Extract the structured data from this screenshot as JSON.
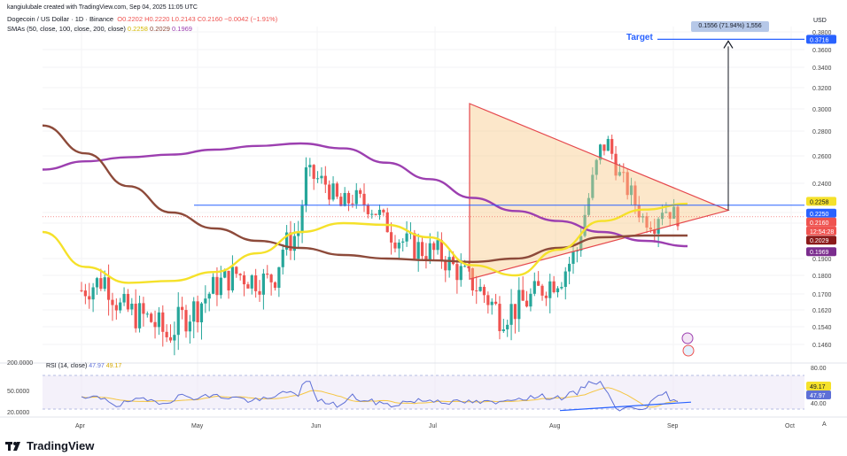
{
  "header": {
    "attribution": "kangiulubale created with TradingView.com, Sep 04, 2025 11:05 UTC",
    "symbol_line": "Dogecoin / US Dollar · 1D · Binance",
    "ohlc": "O0.2202  H0.2220  L0.2143  C0.2160  −0.0042 (−1.91%)",
    "sma_line": "SMAs (50, close, 100, close, 200, close)",
    "sma_values": [
      "0.2258",
      "0.2029",
      "0.1969"
    ]
  },
  "rsi_header": {
    "label": "RSI (14, close)",
    "values": [
      "47.97",
      "49.17"
    ]
  },
  "annotations": {
    "target_label": "Target",
    "measure_label": "0.1556 (71.94%) 1,556"
  },
  "price_axis": {
    "currency": "USD",
    "ticks": [
      "0.3800",
      "0.3600",
      "0.3400",
      "0.3200",
      "0.3000",
      "0.2800",
      "0.2600",
      "0.2400",
      "0.2200",
      "0.2100",
      "0.1900",
      "0.1800",
      "0.1700",
      "0.1620",
      "0.1540",
      "0.1460"
    ],
    "tags": [
      {
        "value": "0.3716",
        "color": "#2962ff"
      },
      {
        "value": "0.2258",
        "color": "#f5e12a",
        "text_color": "#131722"
      },
      {
        "value": "0.2250",
        "color": "#2962ff"
      },
      {
        "value": "0.2160",
        "color": "#ef5350"
      },
      {
        "value": "12:54:28",
        "color": "#ef5350"
      },
      {
        "value": "0.2029",
        "color": "#8b1a1a"
      },
      {
        "value": "0.1969",
        "color": "#7b2d8e"
      }
    ]
  },
  "rsi_axis": {
    "ticks": [
      "80.00",
      "40.00"
    ],
    "left_ticks": [
      "200.0000",
      "50.0000",
      "20.0000"
    ]
  },
  "time_axis": {
    "labels": [
      "Apr",
      "May",
      "Jun",
      "Jul",
      "Aug",
      "Sep",
      "Oct"
    ]
  },
  "footer": {
    "brand": "TradingView"
  },
  "colors": {
    "up": "#26a69a",
    "down": "#ef5350",
    "sma50": "#f5e12a",
    "sma100": "#8d4a3a",
    "sma200": "#9c3fb0",
    "triangle_fill": "#f9c98a",
    "triangle_edge": "#e5484d",
    "hline": "#2962ff",
    "rsi": "#5e6fd6",
    "rsi_ma": "#f5c542",
    "rsi_band": "#ede7f6"
  },
  "chart_data": {
    "type": "candlestick",
    "title": "Dogecoin / US Dollar · 1D · Binance",
    "y_range": [
      0.14,
      0.39
    ],
    "x_labels": [
      "Apr",
      "May",
      "Jun",
      "Jul",
      "Aug",
      "Sep",
      "Oct"
    ],
    "current_price": 0.216,
    "resistance": 0.225,
    "target": 0.3716,
    "triangle": {
      "upper_start": 0.305,
      "lower_start": 0.178,
      "apex": 0.2215
    },
    "sma_series": [
      {
        "name": "SMA 50",
        "values": [
          0.205,
          0.185,
          0.176,
          0.177,
          0.182,
          0.193,
          0.205,
          0.21,
          0.209,
          0.202,
          0.186,
          0.18,
          0.195,
          0.212,
          0.222,
          0.226
        ]
      },
      {
        "name": "SMA 100",
        "values": [
          0.285,
          0.262,
          0.238,
          0.22,
          0.207,
          0.2,
          0.196,
          0.192,
          0.19,
          0.189,
          0.188,
          0.19,
          0.196,
          0.202,
          0.203,
          0.203
        ]
      },
      {
        "name": "SMA 200",
        "values": [
          0.25,
          0.256,
          0.259,
          0.261,
          0.265,
          0.268,
          0.27,
          0.266,
          0.255,
          0.243,
          0.23,
          0.221,
          0.212,
          0.205,
          0.2,
          0.197
        ]
      }
    ],
    "rsi": {
      "name": "RSI (14, close)",
      "value": 47.97,
      "ma": 49.17
    }
  }
}
